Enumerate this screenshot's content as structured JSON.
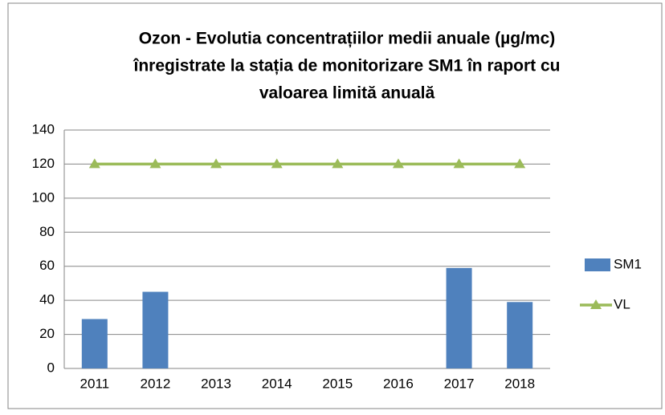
{
  "chart_data": {
    "type": "bar",
    "title": [
      "Ozon - Evolutia concentrațiilor medii anuale (µg/mc)",
      "înregistrate la stația de monitorizare SM1 în raport cu",
      "valoarea limită anuală"
    ],
    "categories": [
      "2011",
      "2012",
      "2013",
      "2014",
      "2015",
      "2016",
      "2017",
      "2018"
    ],
    "series": [
      {
        "name": "SM1",
        "type": "bar",
        "color": "#4f81bd",
        "values": [
          29,
          45,
          null,
          null,
          null,
          null,
          59,
          39
        ]
      },
      {
        "name": "VL",
        "type": "line",
        "color": "#9bbb59",
        "values": [
          120,
          120,
          120,
          120,
          120,
          120,
          120,
          120
        ]
      }
    ],
    "ylim": [
      0,
      140
    ],
    "yticks": [
      0,
      20,
      40,
      60,
      80,
      100,
      120,
      140
    ],
    "grid": true,
    "legend": "right"
  }
}
